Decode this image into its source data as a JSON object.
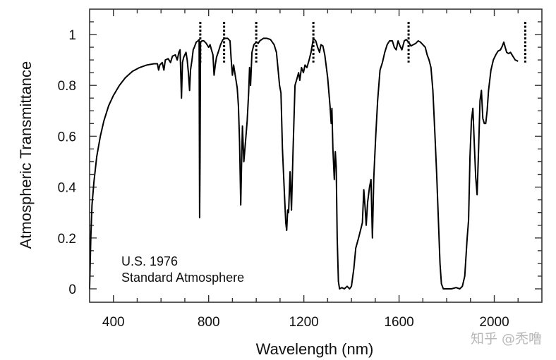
{
  "chart_data": {
    "type": "line",
    "title": "",
    "xlabel": "Wavelength (nm)",
    "ylabel": "Atmospheric Transmittance",
    "xlim": [
      300,
      2200
    ],
    "ylim": [
      -0.05,
      1.1
    ],
    "x_ticks": [
      400,
      800,
      1200,
      1600,
      2000
    ],
    "x_tick_labels": [
      "400",
      "800",
      "1200",
      "1600",
      "2000"
    ],
    "x_minor_step": 100,
    "y_ticks": [
      0,
      0.2,
      0.4,
      0.6,
      0.8,
      1
    ],
    "y_tick_labels": [
      "0",
      "0.2",
      "0.4",
      "0.6",
      "0.8",
      "1"
    ],
    "y_minor_step": 0.05,
    "grid": false,
    "annotation": [
      "U.S. 1976",
      "Standard Atmosphere"
    ],
    "marker_lines": {
      "style": "dashed-vertical",
      "wavelengths": [
        765,
        865,
        1000,
        1240,
        1640,
        2130
      ],
      "y_range": [
        0.89,
        1.05
      ]
    },
    "series": [
      {
        "name": "U.S. 1976 Standard Atmosphere",
        "color": "#000000",
        "points": [
          [
            300,
            0.0
          ],
          [
            305,
            0.2
          ],
          [
            310,
            0.33
          ],
          [
            318,
            0.42
          ],
          [
            330,
            0.52
          ],
          [
            345,
            0.6
          ],
          [
            360,
            0.66
          ],
          [
            380,
            0.72
          ],
          [
            400,
            0.76
          ],
          [
            425,
            0.8
          ],
          [
            450,
            0.83
          ],
          [
            480,
            0.855
          ],
          [
            510,
            0.87
          ],
          [
            540,
            0.88
          ],
          [
            570,
            0.885
          ],
          [
            585,
            0.885
          ],
          [
            590,
            0.86
          ],
          [
            595,
            0.88
          ],
          [
            605,
            0.89
          ],
          [
            612,
            0.86
          ],
          [
            618,
            0.9
          ],
          [
            630,
            0.905
          ],
          [
            640,
            0.89
          ],
          [
            648,
            0.915
          ],
          [
            660,
            0.92
          ],
          [
            668,
            0.9
          ],
          [
            675,
            0.93
          ],
          [
            680,
            0.94
          ],
          [
            686,
            0.75
          ],
          [
            690,
            0.89
          ],
          [
            695,
            0.91
          ],
          [
            700,
            0.92
          ],
          [
            705,
            0.93
          ],
          [
            710,
            0.9
          ],
          [
            715,
            0.85
          ],
          [
            720,
            0.78
          ],
          [
            724,
            0.86
          ],
          [
            730,
            0.9
          ],
          [
            735,
            0.94
          ],
          [
            740,
            0.95
          ],
          [
            748,
            0.97
          ],
          [
            755,
            0.975
          ],
          [
            760,
            0.98
          ],
          [
            762,
            0.28
          ],
          [
            764,
            0.5
          ],
          [
            766,
            0.97
          ],
          [
            772,
            0.975
          ],
          [
            780,
            0.975
          ],
          [
            790,
            0.965
          ],
          [
            800,
            0.95
          ],
          [
            806,
            0.96
          ],
          [
            812,
            0.94
          ],
          [
            818,
            0.92
          ],
          [
            823,
            0.84
          ],
          [
            828,
            0.88
          ],
          [
            833,
            0.91
          ],
          [
            840,
            0.93
          ],
          [
            850,
            0.96
          ],
          [
            860,
            0.98
          ],
          [
            870,
            0.985
          ],
          [
            880,
            0.985
          ],
          [
            890,
            0.975
          ],
          [
            895,
            0.9
          ],
          [
            900,
            0.84
          ],
          [
            905,
            0.88
          ],
          [
            910,
            0.85
          ],
          [
            915,
            0.82
          ],
          [
            920,
            0.79
          ],
          [
            925,
            0.72
          ],
          [
            930,
            0.58
          ],
          [
            935,
            0.33
          ],
          [
            938,
            0.47
          ],
          [
            942,
            0.64
          ],
          [
            948,
            0.5
          ],
          [
            955,
            0.58
          ],
          [
            962,
            0.66
          ],
          [
            968,
            0.77
          ],
          [
            972,
            0.87
          ],
          [
            976,
            0.8
          ],
          [
            982,
            0.93
          ],
          [
            990,
            0.96
          ],
          [
            1000,
            0.97
          ],
          [
            1008,
            0.965
          ],
          [
            1015,
            0.975
          ],
          [
            1030,
            0.985
          ],
          [
            1045,
            0.985
          ],
          [
            1060,
            0.98
          ],
          [
            1075,
            0.96
          ],
          [
            1085,
            0.93
          ],
          [
            1092,
            0.86
          ],
          [
            1098,
            0.8
          ],
          [
            1104,
            0.77
          ],
          [
            1110,
            0.55
          ],
          [
            1118,
            0.38
          ],
          [
            1124,
            0.26
          ],
          [
            1128,
            0.23
          ],
          [
            1132,
            0.31
          ],
          [
            1136,
            0.3
          ],
          [
            1142,
            0.46
          ],
          [
            1148,
            0.31
          ],
          [
            1155,
            0.55
          ],
          [
            1163,
            0.8
          ],
          [
            1172,
            0.83
          ],
          [
            1178,
            0.85
          ],
          [
            1183,
            0.82
          ],
          [
            1190,
            0.87
          ],
          [
            1198,
            0.85
          ],
          [
            1205,
            0.88
          ],
          [
            1213,
            0.87
          ],
          [
            1222,
            0.9
          ],
          [
            1230,
            0.93
          ],
          [
            1240,
            0.985
          ],
          [
            1250,
            0.975
          ],
          [
            1258,
            0.95
          ],
          [
            1266,
            0.93
          ],
          [
            1272,
            0.96
          ],
          [
            1280,
            0.955
          ],
          [
            1288,
            0.92
          ],
          [
            1300,
            0.83
          ],
          [
            1310,
            0.72
          ],
          [
            1315,
            0.65
          ],
          [
            1318,
            0.71
          ],
          [
            1322,
            0.55
          ],
          [
            1328,
            0.43
          ],
          [
            1332,
            0.54
          ],
          [
            1336,
            0.48
          ],
          [
            1340,
            0.2
          ],
          [
            1345,
            0.03
          ],
          [
            1350,
            0.0
          ],
          [
            1360,
            0.005
          ],
          [
            1370,
            0.0
          ],
          [
            1382,
            0.01
          ],
          [
            1392,
            0.0
          ],
          [
            1400,
            0.01
          ],
          [
            1410,
            0.08
          ],
          [
            1418,
            0.16
          ],
          [
            1424,
            0.18
          ],
          [
            1430,
            0.2
          ],
          [
            1438,
            0.23
          ],
          [
            1446,
            0.26
          ],
          [
            1452,
            0.39
          ],
          [
            1458,
            0.31
          ],
          [
            1462,
            0.25
          ],
          [
            1468,
            0.34
          ],
          [
            1476,
            0.4
          ],
          [
            1482,
            0.43
          ],
          [
            1488,
            0.2
          ],
          [
            1494,
            0.44
          ],
          [
            1502,
            0.6
          ],
          [
            1510,
            0.74
          ],
          [
            1520,
            0.86
          ],
          [
            1530,
            0.89
          ],
          [
            1540,
            0.93
          ],
          [
            1550,
            0.96
          ],
          [
            1560,
            0.975
          ],
          [
            1572,
            0.975
          ],
          [
            1580,
            0.95
          ],
          [
            1588,
            0.94
          ],
          [
            1596,
            0.975
          ],
          [
            1604,
            0.955
          ],
          [
            1612,
            0.94
          ],
          [
            1622,
            0.975
          ],
          [
            1630,
            0.98
          ],
          [
            1640,
            0.97
          ],
          [
            1650,
            0.955
          ],
          [
            1660,
            0.96
          ],
          [
            1670,
            0.965
          ],
          [
            1680,
            0.975
          ],
          [
            1690,
            0.97
          ],
          [
            1700,
            0.96
          ],
          [
            1710,
            0.95
          ],
          [
            1718,
            0.92
          ],
          [
            1726,
            0.9
          ],
          [
            1734,
            0.87
          ],
          [
            1742,
            0.78
          ],
          [
            1750,
            0.62
          ],
          [
            1758,
            0.45
          ],
          [
            1766,
            0.25
          ],
          [
            1772,
            0.1
          ],
          [
            1778,
            0.02
          ],
          [
            1786,
            0.0
          ],
          [
            1800,
            0.0
          ],
          [
            1820,
            0.0
          ],
          [
            1840,
            0.005
          ],
          [
            1855,
            0.0
          ],
          [
            1866,
            0.01
          ],
          [
            1876,
            0.05
          ],
          [
            1886,
            0.2
          ],
          [
            1892,
            0.27
          ],
          [
            1898,
            0.52
          ],
          [
            1904,
            0.66
          ],
          [
            1910,
            0.71
          ],
          [
            1916,
            0.57
          ],
          [
            1922,
            0.44
          ],
          [
            1928,
            0.37
          ],
          [
            1934,
            0.55
          ],
          [
            1940,
            0.74
          ],
          [
            1946,
            0.78
          ],
          [
            1952,
            0.67
          ],
          [
            1958,
            0.65
          ],
          [
            1964,
            0.65
          ],
          [
            1970,
            0.7
          ],
          [
            1976,
            0.78
          ],
          [
            1986,
            0.86
          ],
          [
            1996,
            0.9
          ],
          [
            2006,
            0.92
          ],
          [
            2016,
            0.935
          ],
          [
            2026,
            0.94
          ],
          [
            2034,
            0.955
          ],
          [
            2040,
            0.97
          ],
          [
            2046,
            0.95
          ],
          [
            2052,
            0.93
          ],
          [
            2060,
            0.925
          ],
          [
            2068,
            0.93
          ],
          [
            2078,
            0.915
          ],
          [
            2088,
            0.9
          ],
          [
            2100,
            0.895
          ]
        ]
      }
    ]
  },
  "watermark": "知乎 @秃噜"
}
